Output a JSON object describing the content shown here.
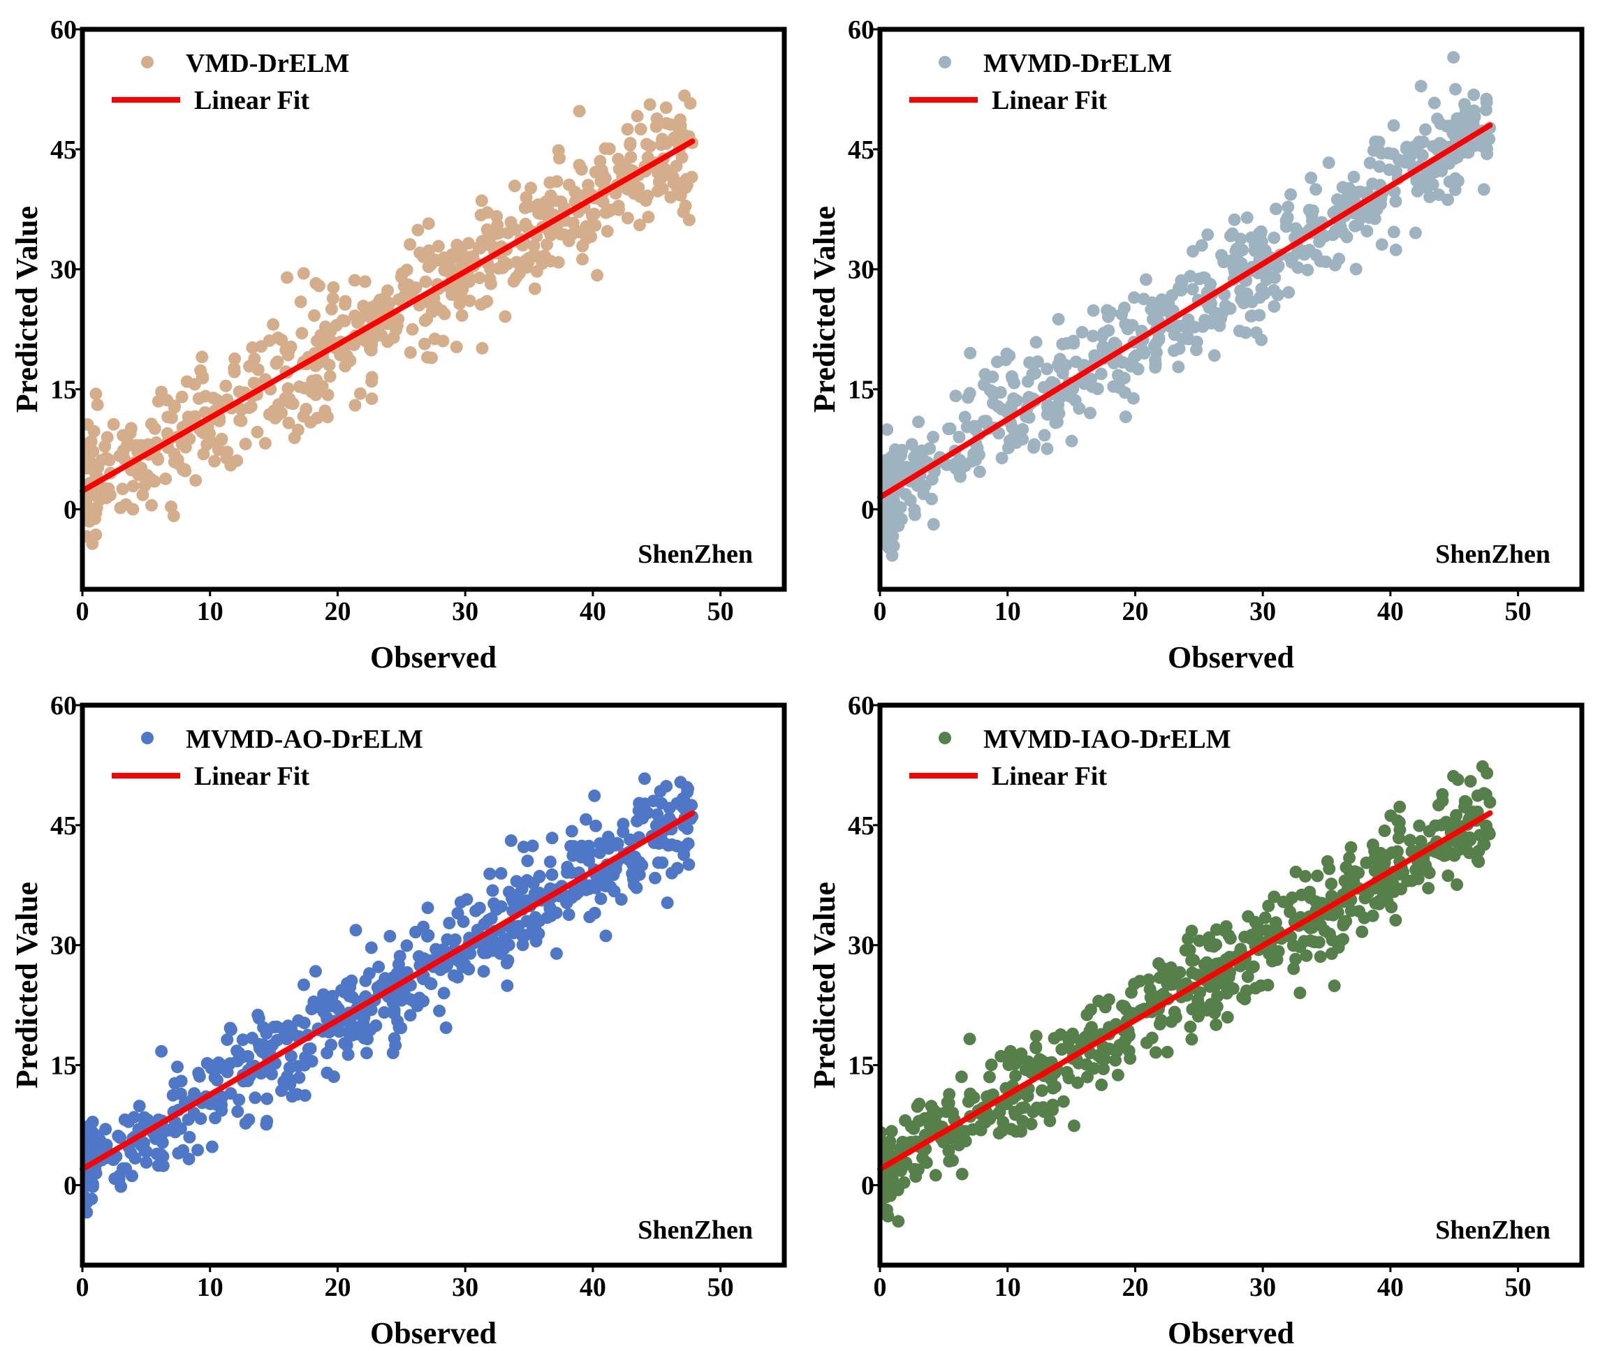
{
  "figure": {
    "background": "#ffffff",
    "fit_color": "#ff0000"
  },
  "chart_data": [
    {
      "type": "scatter",
      "legend_label": "VMD-DrELM",
      "fit_label": "Linear Fit",
      "region_label": "ShenZhen",
      "xlabel": "Observed",
      "ylabel": "Predicted Value",
      "xlim": [
        0,
        55
      ],
      "ylim": [
        -10,
        60
      ],
      "xticks": [
        0,
        10,
        20,
        30,
        40,
        50
      ],
      "yticks": [
        0,
        15,
        30,
        45,
        60
      ],
      "x_tick_labels": [
        "0",
        "10",
        "20",
        "30",
        "40",
        "50"
      ],
      "y_tick_labels": [
        "0",
        "15",
        "30",
        "45",
        "60"
      ],
      "color": "#d4ad8a",
      "fit": {
        "x": [
          0,
          47.8
        ],
        "y": [
          2.3,
          46.0
        ]
      },
      "n_points": 650,
      "noise_sd": 3.8,
      "seed": 11
    },
    {
      "type": "scatter",
      "legend_label": "MVMD-DrELM",
      "fit_label": "Linear Fit",
      "region_label": "ShenZhen",
      "xlabel": "Observed",
      "ylabel": "Predicted Value",
      "xlim": [
        0,
        55
      ],
      "ylim": [
        -10,
        60
      ],
      "xticks": [
        0,
        10,
        20,
        30,
        40,
        50
      ],
      "yticks": [
        0,
        15,
        30,
        45,
        60
      ],
      "x_tick_labels": [
        "0",
        "10",
        "20",
        "30",
        "40",
        "50"
      ],
      "y_tick_labels": [
        "0",
        "15",
        "30",
        "45",
        "60"
      ],
      "color": "#9db4c0",
      "fit": {
        "x": [
          0,
          47.8
        ],
        "y": [
          1.5,
          48.0
        ]
      },
      "n_points": 650,
      "noise_sd": 3.4,
      "seed": 23
    },
    {
      "type": "scatter",
      "legend_label": "MVMD-AO-DrELM",
      "fit_label": "Linear Fit",
      "region_label": "ShenZhen",
      "xlabel": "Observed",
      "ylabel": "Predicted Value",
      "xlim": [
        0,
        55
      ],
      "ylim": [
        -10,
        60
      ],
      "xticks": [
        0,
        10,
        20,
        30,
        40,
        50
      ],
      "yticks": [
        0,
        15,
        30,
        45,
        60
      ],
      "x_tick_labels": [
        "0",
        "10",
        "20",
        "30",
        "40",
        "50"
      ],
      "y_tick_labels": [
        "0",
        "15",
        "30",
        "45",
        "60"
      ],
      "color": "#4e78c7",
      "fit": {
        "x": [
          0,
          47.8
        ],
        "y": [
          2.0,
          46.5
        ]
      },
      "n_points": 650,
      "noise_sd": 3.2,
      "seed": 37
    },
    {
      "type": "scatter",
      "legend_label": "MVMD-IAO-DrELM",
      "fit_label": "Linear Fit",
      "region_label": "ShenZhen",
      "xlabel": "Observed",
      "ylabel": "Predicted Value",
      "xlim": [
        0,
        55
      ],
      "ylim": [
        -10,
        60
      ],
      "xticks": [
        0,
        10,
        20,
        30,
        40,
        50
      ],
      "yticks": [
        0,
        15,
        30,
        45,
        60
      ],
      "x_tick_labels": [
        "0",
        "10",
        "20",
        "30",
        "40",
        "50"
      ],
      "y_tick_labels": [
        "0",
        "15",
        "30",
        "45",
        "60"
      ],
      "color": "#56804a",
      "fit": {
        "x": [
          0,
          47.8
        ],
        "y": [
          2.0,
          46.5
        ]
      },
      "n_points": 650,
      "noise_sd": 3.0,
      "seed": 53
    }
  ]
}
